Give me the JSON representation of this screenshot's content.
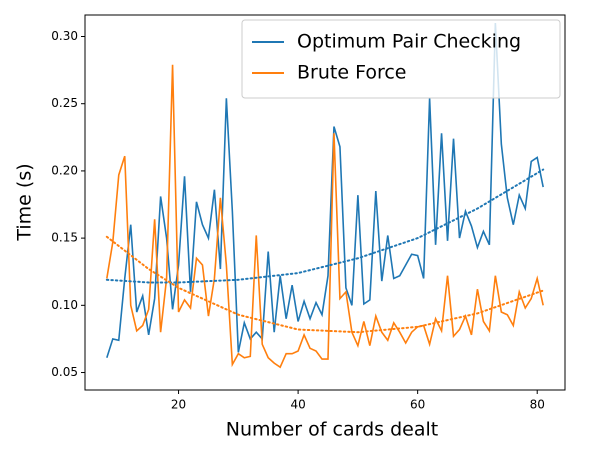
{
  "chart_data": {
    "type": "line",
    "xlabel": "Number of cards dealt",
    "ylabel": "Time (s)",
    "x": [
      8,
      9,
      10,
      11,
      12,
      13,
      14,
      15,
      16,
      17,
      18,
      19,
      20,
      21,
      22,
      23,
      24,
      25,
      26,
      27,
      28,
      29,
      30,
      31,
      32,
      33,
      34,
      35,
      36,
      37,
      38,
      39,
      40,
      41,
      42,
      43,
      44,
      45,
      46,
      47,
      48,
      49,
      50,
      51,
      52,
      53,
      54,
      55,
      56,
      57,
      58,
      59,
      60,
      61,
      62,
      63,
      64,
      65,
      66,
      67,
      68,
      69,
      70,
      71,
      72,
      73,
      74,
      75,
      76,
      77,
      78,
      79,
      80,
      81
    ],
    "series": [
      {
        "name": "Optimum Pair Checking",
        "color": "#1f77b4",
        "style": "solid",
        "values": [
          0.061,
          0.075,
          0.074,
          0.12,
          0.16,
          0.095,
          0.107,
          0.078,
          0.105,
          0.181,
          0.15,
          0.097,
          0.13,
          0.196,
          0.11,
          0.177,
          0.16,
          0.15,
          0.186,
          0.127,
          0.254,
          0.17,
          0.065,
          0.087,
          0.075,
          0.08,
          0.075,
          0.14,
          0.08,
          0.122,
          0.09,
          0.115,
          0.088,
          0.103,
          0.09,
          0.102,
          0.093,
          0.122,
          0.233,
          0.218,
          0.113,
          0.1,
          0.182,
          0.101,
          0.104,
          0.185,
          0.118,
          0.152,
          0.12,
          0.122,
          0.13,
          0.138,
          0.137,
          0.12,
          0.254,
          0.145,
          0.228,
          0.148,
          0.224,
          0.15,
          0.17,
          0.159,
          0.143,
          0.155,
          0.145,
          0.31,
          0.22,
          0.18,
          0.16,
          0.182,
          0.172,
          0.207,
          0.21,
          0.188
        ]
      },
      {
        "name": "Brute Force",
        "color": "#ff7f0e",
        "style": "solid",
        "values": [
          0.12,
          0.147,
          0.197,
          0.211,
          0.1,
          0.081,
          0.085,
          0.097,
          0.164,
          0.08,
          0.12,
          0.279,
          0.095,
          0.104,
          0.098,
          0.135,
          0.13,
          0.092,
          0.12,
          0.18,
          0.13,
          0.056,
          0.064,
          0.061,
          0.062,
          0.152,
          0.071,
          0.061,
          0.057,
          0.054,
          0.064,
          0.064,
          0.066,
          0.078,
          0.068,
          0.066,
          0.06,
          0.06,
          0.228,
          0.105,
          0.11,
          0.08,
          0.07,
          0.088,
          0.07,
          0.092,
          0.08,
          0.074,
          0.087,
          0.08,
          0.072,
          0.08,
          0.084,
          0.085,
          0.071,
          0.09,
          0.081,
          0.122,
          0.077,
          0.082,
          0.092,
          0.078,
          0.112,
          0.088,
          0.081,
          0.122,
          0.095,
          0.093,
          0.085,
          0.11,
          0.098,
          0.105,
          0.12,
          0.1
        ]
      },
      {
        "color": "#1f77b4",
        "style": "dotted",
        "x": [
          8,
          15,
          20,
          30,
          40,
          50,
          60,
          70,
          81
        ],
        "values": [
          0.119,
          0.117,
          0.117,
          0.119,
          0.124,
          0.135,
          0.15,
          0.172,
          0.201
        ]
      },
      {
        "color": "#ff7f0e",
        "style": "dotted",
        "x": [
          8,
          15,
          20,
          30,
          40,
          50,
          60,
          70,
          81
        ],
        "values": [
          0.151,
          0.127,
          0.113,
          0.093,
          0.082,
          0.08,
          0.084,
          0.094,
          0.111
        ]
      }
    ],
    "xlim": [
      4.35,
      84.65
    ],
    "xticks": [
      20,
      40,
      60,
      80
    ],
    "ylim": [
      0.037,
      0.316
    ],
    "yticks": [
      0.05,
      {
        "value": 0.1,
        "label": "0.10"
      },
      0.15,
      {
        "value": 0.2,
        "label": "0.20"
      },
      0.25,
      {
        "value": 0.3,
        "label": "0.30"
      }
    ],
    "legend": "upper right",
    "grid": false
  }
}
